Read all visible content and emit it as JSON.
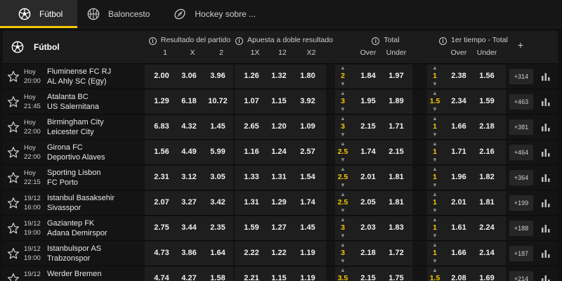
{
  "tabs": [
    {
      "label": "Fútbol",
      "icon": "soccer-ball-icon",
      "active": true
    },
    {
      "label": "Baloncesto",
      "icon": "basketball-icon",
      "active": false
    },
    {
      "label": "Hockey sobre ...",
      "icon": "hockey-icon",
      "active": false
    }
  ],
  "header": {
    "league": "Fútbol",
    "groups": {
      "match_result": {
        "title": "Resultado del partido",
        "cols": [
          "1",
          "X",
          "2"
        ]
      },
      "double_chance": {
        "title": "Apuesta a doble resultado",
        "cols": [
          "1X",
          "12",
          "X2"
        ]
      },
      "total": {
        "title": "Total",
        "cols": [
          "Over",
          "Under"
        ]
      },
      "first_half_total": {
        "title": "1er tiempo - Total",
        "cols": [
          "Over",
          "Under"
        ]
      }
    },
    "plus": "+"
  },
  "matches": [
    {
      "day": "Hoy",
      "time": "20:00",
      "home": "Fluminense FC RJ",
      "away": "AL Ahly SC (Egy)",
      "odds": [
        "2.00",
        "3.06",
        "3.96"
      ],
      "dc": [
        "1.26",
        "1.32",
        "1.80"
      ],
      "total_line": "2",
      "total": [
        "1.84",
        "1.97"
      ],
      "ht_line": "1",
      "ht": [
        "2.38",
        "1.56"
      ],
      "more": "+314"
    },
    {
      "day": "Hoy",
      "time": "21:45",
      "home": "Atalanta BC",
      "away": "US Salernitana",
      "odds": [
        "1.29",
        "6.18",
        "10.72"
      ],
      "dc": [
        "1.07",
        "1.15",
        "3.92"
      ],
      "total_line": "3",
      "total": [
        "1.95",
        "1.89"
      ],
      "ht_line": "1.5",
      "ht": [
        "2.34",
        "1.59"
      ],
      "more": "+463"
    },
    {
      "day": "Hoy",
      "time": "22:00",
      "home": "Birmingham City",
      "away": "Leicester City",
      "odds": [
        "6.83",
        "4.32",
        "1.45"
      ],
      "dc": [
        "2.65",
        "1.20",
        "1.09"
      ],
      "total_line": "3",
      "total": [
        "2.15",
        "1.71"
      ],
      "ht_line": "1",
      "ht": [
        "1.66",
        "2.18"
      ],
      "more": "+381"
    },
    {
      "day": "Hoy",
      "time": "22:00",
      "home": "Girona FC",
      "away": "Deportivo Alaves",
      "odds": [
        "1.56",
        "4.49",
        "5.99"
      ],
      "dc": [
        "1.16",
        "1.24",
        "2.57"
      ],
      "total_line": "2.5",
      "total": [
        "1.74",
        "2.15"
      ],
      "ht_line": "1",
      "ht": [
        "1.71",
        "2.16"
      ],
      "more": "+464"
    },
    {
      "day": "Hoy",
      "time": "22:15",
      "home": "Sporting Lisbon",
      "away": "FC Porto",
      "odds": [
        "2.31",
        "3.12",
        "3.05"
      ],
      "dc": [
        "1.33",
        "1.31",
        "1.54"
      ],
      "total_line": "2.5",
      "total": [
        "2.01",
        "1.81"
      ],
      "ht_line": "1",
      "ht": [
        "1.96",
        "1.82"
      ],
      "more": "+364"
    },
    {
      "day": "19/12",
      "time": "16:00",
      "home": "Istanbul Basaksehir",
      "away": "Sivasspor",
      "odds": [
        "2.07",
        "3.27",
        "3.42"
      ],
      "dc": [
        "1.31",
        "1.29",
        "1.74"
      ],
      "total_line": "2.5",
      "total": [
        "2.05",
        "1.81"
      ],
      "ht_line": "1",
      "ht": [
        "2.01",
        "1.81"
      ],
      "more": "+199"
    },
    {
      "day": "19/12",
      "time": "19:00",
      "home": "Gaziantep FK",
      "away": "Adana Demirspor",
      "odds": [
        "2.75",
        "3.44",
        "2.35"
      ],
      "dc": [
        "1.59",
        "1.27",
        "1.45"
      ],
      "total_line": "3",
      "total": [
        "2.03",
        "1.83"
      ],
      "ht_line": "1",
      "ht": [
        "1.61",
        "2.24"
      ],
      "more": "+188"
    },
    {
      "day": "19/12",
      "time": "19:00",
      "home": "Istanbulspor AS",
      "away": "Trabzonspor",
      "odds": [
        "4.73",
        "3.86",
        "1.64"
      ],
      "dc": [
        "2.22",
        "1.22",
        "1.19"
      ],
      "total_line": "3",
      "total": [
        "2.18",
        "1.72"
      ],
      "ht_line": "1",
      "ht": [
        "1.66",
        "2.14"
      ],
      "more": "+187"
    },
    {
      "day": "19/12",
      "time": "",
      "home": "Werder Bremen",
      "away": "",
      "odds": [
        "4.74",
        "4.27",
        "1.58"
      ],
      "dc": [
        "2.21",
        "1.15",
        "1.19"
      ],
      "total_line": "3.5",
      "total": [
        "2.15",
        "1.75"
      ],
      "ht_line": "1.5",
      "ht": [
        "2.08",
        "1.69"
      ],
      "more": "+214"
    }
  ],
  "colors": {
    "accent": "#f5c800",
    "background": "#111111",
    "row": "#141414",
    "odds_cell": "#1e1e1e"
  }
}
